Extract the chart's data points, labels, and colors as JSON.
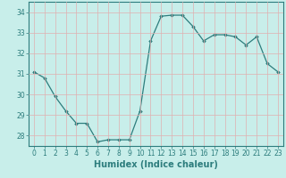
{
  "x": [
    0,
    1,
    2,
    3,
    4,
    5,
    6,
    7,
    8,
    9,
    10,
    11,
    12,
    13,
    14,
    15,
    16,
    17,
    18,
    19,
    20,
    21,
    22,
    23
  ],
  "y": [
    31.1,
    30.8,
    29.9,
    29.2,
    28.6,
    28.6,
    27.7,
    27.8,
    27.8,
    27.8,
    29.2,
    32.6,
    33.8,
    33.85,
    33.85,
    33.3,
    32.6,
    32.9,
    32.9,
    32.8,
    32.4,
    32.8,
    31.5,
    31.1
  ],
  "line_color": "#2d7d7d",
  "marker": "D",
  "marker_size": 1.8,
  "bg_color": "#c8eeea",
  "grid_color": "#e0b0b0",
  "xlabel": "Humidex (Indice chaleur)",
  "yticks": [
    28,
    29,
    30,
    31,
    32,
    33,
    34
  ],
  "xticks": [
    0,
    1,
    2,
    3,
    4,
    5,
    6,
    7,
    8,
    9,
    10,
    11,
    12,
    13,
    14,
    15,
    16,
    17,
    18,
    19,
    20,
    21,
    22,
    23
  ],
  "ylim": [
    27.5,
    34.5
  ],
  "xlim": [
    -0.5,
    23.5
  ],
  "tick_fontsize": 5.5,
  "xlabel_fontsize": 7.0,
  "tick_color": "#2d7d7d",
  "label_color": "#2d7d7d",
  "spine_color": "#2d7d7d"
}
